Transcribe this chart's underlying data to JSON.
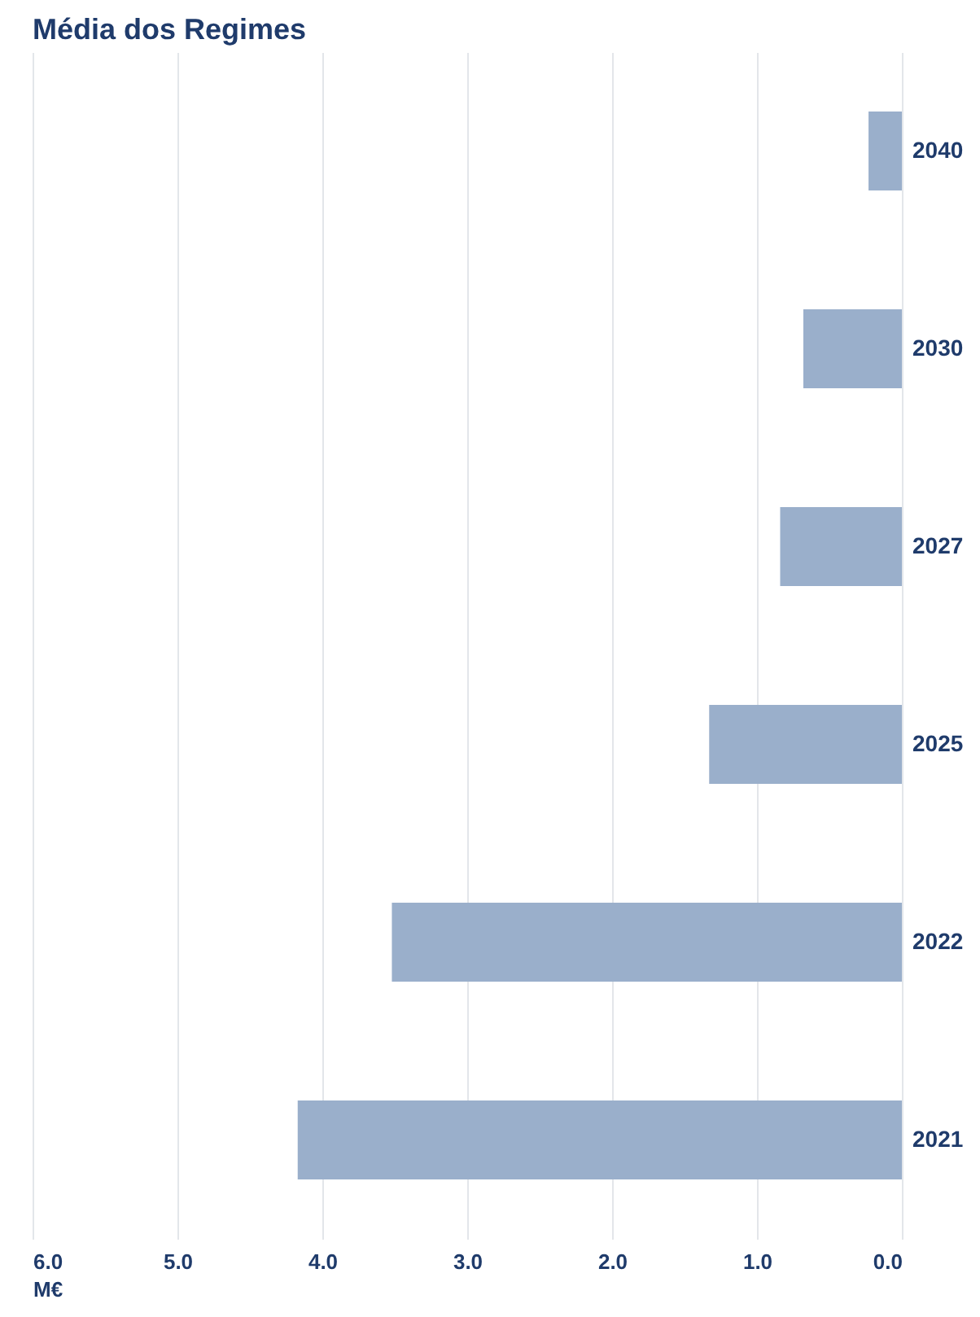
{
  "chart_data": {
    "type": "bar",
    "orientation": "horizontal",
    "title": "Média dos Regimes",
    "xlabel": "M€",
    "categories": [
      "2040",
      "2030",
      "2027",
      "2025",
      "2022",
      "2021"
    ],
    "values": [
      0.23,
      0.68,
      0.84,
      1.33,
      3.52,
      4.17
    ],
    "color": "#9aafcb",
    "xlim": [
      6.0,
      0.0
    ],
    "xticks": [
      {
        "value": 6,
        "label": "6.0"
      },
      {
        "value": 5,
        "label": "5.0"
      },
      {
        "value": 4,
        "label": "4.0"
      },
      {
        "value": 3,
        "label": "3.0"
      },
      {
        "value": 2,
        "label": "2.0"
      },
      {
        "value": 1,
        "label": "1.0"
      },
      {
        "value": 0,
        "label": "0.0"
      }
    ],
    "grid": "x"
  }
}
